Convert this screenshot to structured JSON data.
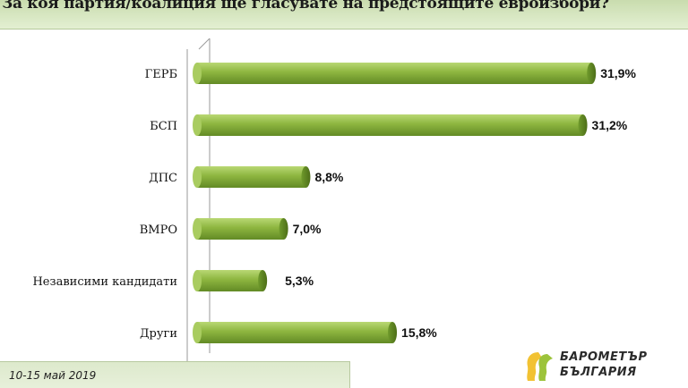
{
  "header": {
    "title": "За коя партия/коалиция ще гласувате на предстоящите евроизбори?"
  },
  "footer": {
    "date": "10-15 май 2019"
  },
  "logo": {
    "line1": "БАРОМЕТЪР",
    "line2": "БЪЛГАРИЯ"
  },
  "colors": {
    "bar": "#8db53f",
    "bar_light": "#b9d874",
    "bar_dark": "#5f8422",
    "header_bg": "#d6e6c0"
  },
  "chart_data": {
    "type": "bar",
    "orientation": "horizontal",
    "title": "За коя партия/коалиция ще гласувате на предстоящите евроизбори?",
    "categories": [
      "ГЕРБ",
      "БСП",
      "ДПС",
      "ВМРО",
      "Независими кандидати",
      "Други"
    ],
    "values": [
      31.9,
      31.2,
      8.8,
      7.0,
      5.3,
      15.8
    ],
    "value_labels": [
      "31,9%",
      "31,2%",
      "8,8%",
      "7,0%",
      "5,3%",
      "15,8%"
    ],
    "unit": "%",
    "xlim": [
      0,
      35
    ],
    "grid": false,
    "legend": "none"
  }
}
